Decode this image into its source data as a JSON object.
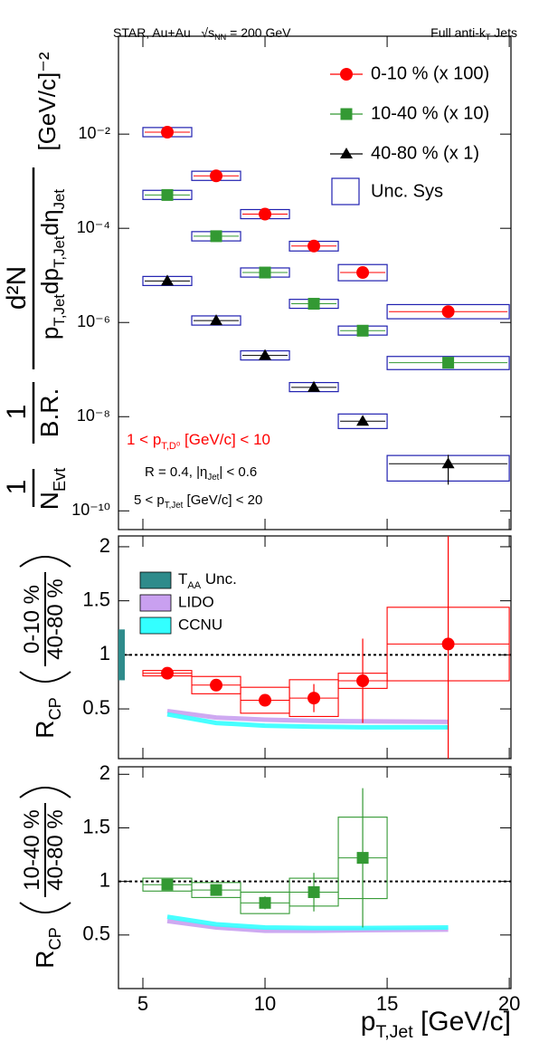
{
  "header": {
    "left": [
      "STAR, Au+Au   √s",
      "NN",
      " = 200 GeV"
    ],
    "right": [
      "Full anti-k",
      "T",
      " Jets"
    ]
  },
  "chart_data": [
    {
      "type": "scatter",
      "log_y": true,
      "xlim": [
        4,
        20.07
      ],
      "ylim": [
        4e-11,
        1.2
      ],
      "yticks": [
        {
          "value": 0.01,
          "label": "10⁻²"
        },
        {
          "value": 0.0001,
          "label": "10⁻⁴"
        },
        {
          "value": 1e-06,
          "label": "10⁻⁶"
        },
        {
          "value": 1e-08,
          "label": "10⁻⁸"
        },
        {
          "value": 1e-10,
          "label": "10⁻¹⁰"
        }
      ],
      "bin_edges": [
        5,
        7,
        9,
        11,
        13,
        15,
        20
      ],
      "box_color": "#2020b0",
      "sys_label": "Unc. Sys",
      "legend": "top-right",
      "y_label": {
        "f1_num": [
          "1"
        ],
        "f1_den": [
          "N",
          "Evt"
        ],
        "f2_num": [
          "1"
        ],
        "f2_den": [
          "B.R."
        ],
        "f3_num": [
          "d²N"
        ],
        "f3_den": [
          "p",
          "T,Jet",
          "dp",
          "T,Jet",
          "dη",
          "Jet"
        ],
        "unit": [
          "[GeV/c]⁻²"
        ]
      },
      "annotations": [
        [
          "1 < p",
          "T,D⁰",
          " [GeV/c] < 10"
        ],
        [
          "R = 0.4, |η",
          "Jet",
          "| < 0.6"
        ],
        [
          "5 < p",
          "T,Jet",
          " [GeV/c] < 20"
        ]
      ],
      "annotation_colors": [
        "#ff0000",
        "#000000",
        "#000000"
      ],
      "series": [
        {
          "name": "0-10 % (x 100)",
          "color": "#ff0000",
          "marker": "circle",
          "x": [
            6,
            8,
            10,
            12,
            14,
            17.5
          ],
          "values": [
            0.011,
            0.0013,
            0.0002,
            4.2e-05,
            1.15e-05,
            1.7e-06
          ],
          "sys_low": [
            0.0088,
            0.00104,
            0.00016,
            3.3e-05,
            7.7e-06,
            1.2e-06
          ],
          "sys_high": [
            0.0138,
            0.00163,
            0.00025,
            5.3e-05,
            1.7e-05,
            2.4e-06
          ]
        },
        {
          "name": "10-40 % (x 10)",
          "color": "#339933",
          "marker": "square",
          "x": [
            6,
            8,
            10,
            12,
            14,
            17.5
          ],
          "values": [
            0.00051,
            6.8e-05,
            1.15e-05,
            2.5e-06,
            6.7e-07,
            1.4e-07
          ],
          "sys_low": [
            0.00041,
            5.4e-05,
            9.2e-06,
            2e-06,
            5.4e-07,
            1e-07
          ],
          "sys_high": [
            0.00064,
            8.5e-05,
            1.44e-05,
            3.1e-06,
            8.4e-07,
            1.9e-07
          ]
        },
        {
          "name": "40-80 % (x 1)",
          "color": "#000000",
          "marker": "triangle",
          "x": [
            6,
            8,
            10,
            12,
            14,
            17.5
          ],
          "values": [
            7.6e-06,
            1.1e-06,
            2e-07,
            4.2e-08,
            8e-09,
            1e-09
          ],
          "sys_low": [
            6.1e-06,
            8.8e-07,
            1.6e-07,
            3.4e-08,
            5.6e-09,
            4.3e-10
          ],
          "sys_high": [
            9.5e-06,
            1.38e-06,
            2.5e-07,
            5.3e-08,
            1.14e-08,
            1.5e-09
          ],
          "err_low": [
            null,
            null,
            null,
            null,
            null,
            3.6e-10
          ],
          "err_high": [
            null,
            null,
            null,
            null,
            null,
            1.55e-09
          ]
        }
      ]
    },
    {
      "type": "ratio",
      "xlim": [
        4,
        20.07
      ],
      "ylim": [
        0.04,
        2.1
      ],
      "yticks": [
        0.5,
        1,
        1.5,
        2
      ],
      "hline": 1,
      "bin_edges": [
        5,
        7,
        9,
        11,
        13,
        15,
        20
      ],
      "ylabel": [
        "R",
        "CP"
      ],
      "ratio_num": [
        "0-10 %"
      ],
      "ratio_den": [
        "40-80 %"
      ],
      "norm_unc": {
        "name": [
          "T",
          "AA",
          " Unc."
        ],
        "value": 1,
        "error": 0.235,
        "color": "#2e8b8b"
      },
      "series": [
        {
          "color": "#ff0000",
          "marker": "circle",
          "x": [
            6,
            8,
            10,
            12,
            14,
            17.5
          ],
          "values": [
            0.83,
            0.72,
            0.58,
            0.6,
            0.76,
            1.1
          ],
          "errors": [
            0.02,
            0.03,
            0.04,
            0.13,
            0.39,
            1.1
          ],
          "sys": [
            0.025,
            0.08,
            0.12,
            0.17,
            0.07,
            0.34
          ]
        }
      ],
      "curves": [
        {
          "name": "LIDO",
          "color": "#c9a0f0",
          "x": [
            6,
            8,
            10,
            12,
            14,
            17.5
          ],
          "values": [
            0.48,
            0.42,
            0.4,
            0.39,
            0.385,
            0.38
          ]
        },
        {
          "name": "CCNU",
          "color": "#33ffff",
          "x": [
            6,
            8,
            10,
            12,
            14,
            17.5
          ],
          "values": [
            0.45,
            0.37,
            0.345,
            0.335,
            0.33,
            0.33
          ]
        }
      ]
    },
    {
      "type": "ratio",
      "xlim": [
        4,
        20.07
      ],
      "ylim": [
        0,
        2.07
      ],
      "yticks": [
        0.5,
        1,
        1.5,
        2
      ],
      "hline": 1,
      "xticks": [
        5,
        10,
        15,
        20
      ],
      "x_label": [
        "p",
        "T,Jet",
        " [GeV/c]"
      ],
      "bin_edges": [
        5,
        7,
        9,
        11,
        13,
        15
      ],
      "ylabel": [
        "R",
        "CP"
      ],
      "ratio_num": [
        "10-40 %"
      ],
      "ratio_den": [
        "40-80 %"
      ],
      "series": [
        {
          "color": "#339933",
          "marker": "square",
          "x": [
            6,
            8,
            10,
            12,
            14
          ],
          "values": [
            0.97,
            0.92,
            0.8,
            0.9,
            1.22
          ],
          "errors": [
            0.04,
            0.04,
            0.06,
            0.18,
            0.65
          ],
          "sys": [
            0.06,
            0.07,
            0.1,
            0.13,
            0.38
          ]
        }
      ],
      "curves": [
        {
          "color": "#c9a0f0",
          "x": [
            6,
            8,
            10,
            12,
            14,
            17.5
          ],
          "values": [
            0.63,
            0.57,
            0.54,
            0.54,
            0.545,
            0.55
          ]
        },
        {
          "color": "#33ffff",
          "x": [
            6,
            8,
            10,
            12,
            14,
            17.5
          ],
          "values": [
            0.67,
            0.6,
            0.57,
            0.565,
            0.565,
            0.57
          ]
        }
      ]
    }
  ]
}
